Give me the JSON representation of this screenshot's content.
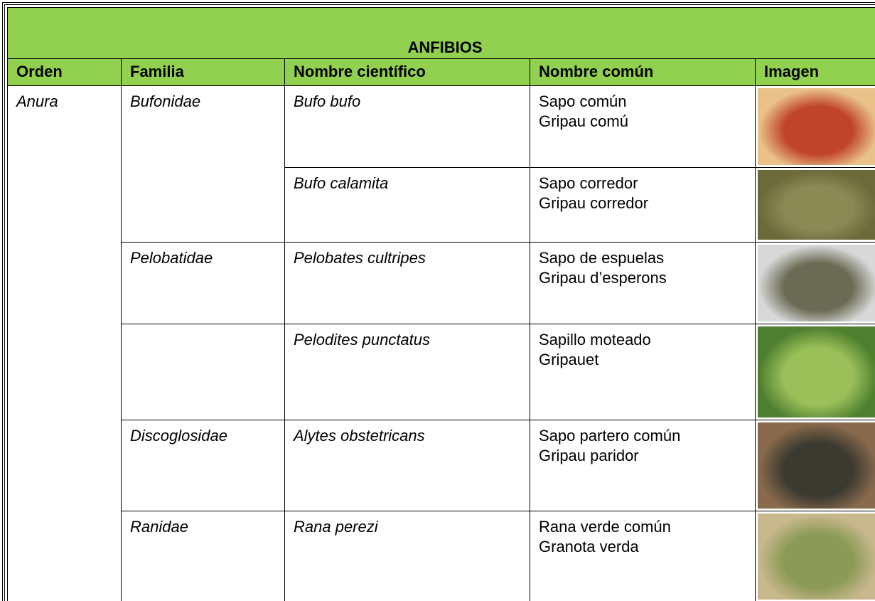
{
  "table": {
    "title": "ANFIBIOS",
    "headers": [
      "Orden",
      "Familia",
      "Nombre científico",
      "Nombre común",
      "Imagen"
    ],
    "orden": "Anura",
    "families": [
      {
        "name": "Bufonidae",
        "species": [
          {
            "scientific": "Bufo bufo",
            "common": [
              "Sapo común",
              "Gripau comú"
            ]
          },
          {
            "scientific": "Bufo calamita",
            "common": [
              "Sapo corredor",
              "Gripau corredor"
            ]
          }
        ]
      },
      {
        "name": "Pelobatidae",
        "species": [
          {
            "scientific": "Pelobates cultripes",
            "common": [
              "Sapo de espuelas",
              "Gripau d’esperons"
            ]
          }
        ]
      },
      {
        "species": [
          {
            "scientific": "Pelodites punctatus",
            "common": [
              "Sapillo moteado",
              "Gripauet"
            ]
          }
        ]
      },
      {
        "name": "Discoglosidae",
        "species": [
          {
            "scientific": "Alytes obstetricans",
            "common": [
              "Sapo partero común",
              "Gripau paridor"
            ]
          }
        ]
      },
      {
        "name": "Ranidae",
        "species": [
          {
            "scientific": "Rana perezi",
            "common": [
              "Rana verde común",
              "Granota verda"
            ]
          }
        ]
      }
    ]
  }
}
